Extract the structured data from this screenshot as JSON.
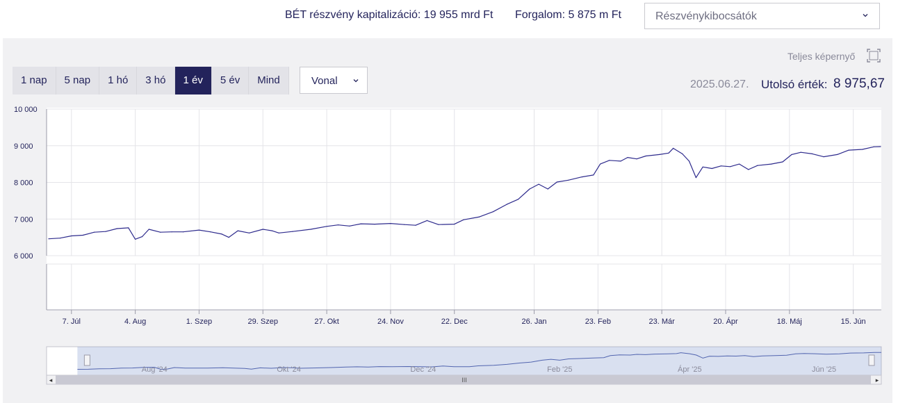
{
  "header": {
    "capitalization": "BÉT részvény kapitalizáció: 19 955 mrd Ft",
    "turnover": "Forgalom: 5 875 m Ft",
    "issuer_select": "Részvénykibocsátók"
  },
  "toolbar": {
    "fullscreen": "Teljes képernyő",
    "ranges": [
      "1 nap",
      "5 nap",
      "1 hó",
      "3 hó",
      "1 év",
      "5 év",
      "Mind"
    ],
    "active_range": "1 év",
    "chart_type": "Vonal",
    "date": "2025.06.27.",
    "last_label": "Utolsó érték:",
    "last_value": "8 975,67"
  },
  "colors": {
    "line": "#2d2a8c",
    "navy": "#23235b",
    "panel": "#f1f1f3"
  },
  "chart_data": {
    "type": "line",
    "title": "",
    "xlabel": "",
    "ylabel": "",
    "ylim": [
      6000,
      10000
    ],
    "yticks": [
      6000,
      7000,
      8000,
      9000,
      10000
    ],
    "ytick_labels": [
      "6 000",
      "7 000",
      "8 000",
      "9 000",
      "10 000"
    ],
    "x_range": [
      "2024-06-27",
      "2025-06-27"
    ],
    "xticks": [
      {
        "date": "2024-07-07",
        "label": "7. Júl"
      },
      {
        "date": "2024-08-04",
        "label": "4. Aug"
      },
      {
        "date": "2024-09-01",
        "label": "1. Szep"
      },
      {
        "date": "2024-09-29",
        "label": "29. Szep"
      },
      {
        "date": "2024-10-27",
        "label": "27. Okt"
      },
      {
        "date": "2024-11-24",
        "label": "24. Nov"
      },
      {
        "date": "2024-12-22",
        "label": "22. Dec"
      },
      {
        "date": "2025-01-26",
        "label": "26. Jan"
      },
      {
        "date": "2025-02-23",
        "label": "23. Feb"
      },
      {
        "date": "2025-03-23",
        "label": "23. Már"
      },
      {
        "date": "2025-04-20",
        "label": "20. Ápr"
      },
      {
        "date": "2025-05-18",
        "label": "18. Máj"
      },
      {
        "date": "2025-06-15",
        "label": "15. Jún"
      }
    ],
    "series": [
      {
        "values": [
          [
            "2024-06-27",
            6460
          ],
          [
            "2024-07-02",
            6480
          ],
          [
            "2024-07-07",
            6540
          ],
          [
            "2024-07-12",
            6560
          ],
          [
            "2024-07-17",
            6640
          ],
          [
            "2024-07-22",
            6660
          ],
          [
            "2024-07-27",
            6740
          ],
          [
            "2024-08-01",
            6760
          ],
          [
            "2024-08-04",
            6450
          ],
          [
            "2024-08-07",
            6520
          ],
          [
            "2024-08-10",
            6720
          ],
          [
            "2024-08-15",
            6640
          ],
          [
            "2024-08-20",
            6650
          ],
          [
            "2024-08-25",
            6650
          ],
          [
            "2024-09-01",
            6700
          ],
          [
            "2024-09-06",
            6650
          ],
          [
            "2024-09-11",
            6590
          ],
          [
            "2024-09-14",
            6500
          ],
          [
            "2024-09-18",
            6680
          ],
          [
            "2024-09-23",
            6620
          ],
          [
            "2024-09-29",
            6720
          ],
          [
            "2024-10-03",
            6680
          ],
          [
            "2024-10-06",
            6620
          ],
          [
            "2024-10-12",
            6660
          ],
          [
            "2024-10-20",
            6720
          ],
          [
            "2024-10-27",
            6800
          ],
          [
            "2024-11-01",
            6840
          ],
          [
            "2024-11-06",
            6810
          ],
          [
            "2024-11-11",
            6870
          ],
          [
            "2024-11-17",
            6860
          ],
          [
            "2024-11-24",
            6880
          ],
          [
            "2024-11-30",
            6850
          ],
          [
            "2024-12-05",
            6830
          ],
          [
            "2024-12-10",
            6960
          ],
          [
            "2024-12-15",
            6850
          ],
          [
            "2024-12-22",
            6860
          ],
          [
            "2024-12-26",
            6980
          ],
          [
            "2025-01-02",
            7060
          ],
          [
            "2025-01-08",
            7200
          ],
          [
            "2025-01-14",
            7400
          ],
          [
            "2025-01-19",
            7540
          ],
          [
            "2025-01-24",
            7820
          ],
          [
            "2025-01-28",
            7950
          ],
          [
            "2025-02-01",
            7820
          ],
          [
            "2025-02-05",
            8010
          ],
          [
            "2025-02-10",
            8060
          ],
          [
            "2025-02-16",
            8150
          ],
          [
            "2025-02-21",
            8200
          ],
          [
            "2025-02-24",
            8500
          ],
          [
            "2025-02-28",
            8600
          ],
          [
            "2025-03-05",
            8580
          ],
          [
            "2025-03-08",
            8680
          ],
          [
            "2025-03-12",
            8640
          ],
          [
            "2025-03-16",
            8720
          ],
          [
            "2025-03-22",
            8760
          ],
          [
            "2025-03-26",
            8800
          ],
          [
            "2025-03-28",
            8930
          ],
          [
            "2025-04-01",
            8780
          ],
          [
            "2025-04-04",
            8580
          ],
          [
            "2025-04-07",
            8130
          ],
          [
            "2025-04-10",
            8420
          ],
          [
            "2025-04-14",
            8380
          ],
          [
            "2025-04-18",
            8450
          ],
          [
            "2025-04-22",
            8430
          ],
          [
            "2025-04-26",
            8500
          ],
          [
            "2025-04-30",
            8350
          ],
          [
            "2025-05-04",
            8460
          ],
          [
            "2025-05-10",
            8500
          ],
          [
            "2025-05-15",
            8560
          ],
          [
            "2025-05-19",
            8760
          ],
          [
            "2025-05-23",
            8820
          ],
          [
            "2025-05-28",
            8780
          ],
          [
            "2025-06-02",
            8700
          ],
          [
            "2025-06-08",
            8760
          ],
          [
            "2025-06-13",
            8880
          ],
          [
            "2025-06-19",
            8900
          ],
          [
            "2025-06-24",
            8970
          ],
          [
            "2025-06-27",
            8976
          ]
        ]
      }
    ],
    "navigator": {
      "labels": [
        "Aug '24",
        "Okt '24",
        "Dec '24",
        "Feb '25",
        "Ápr '25",
        "Jún '25"
      ],
      "label_dates": [
        "2024-08-01",
        "2024-10-01",
        "2024-12-01",
        "2025-02-01",
        "2025-04-01",
        "2025-06-01"
      ],
      "nav_range": [
        "2024-06-13",
        "2025-06-27"
      ],
      "grip": "III",
      "scroll_left": "◂",
      "scroll_right": "▸"
    },
    "grid": true
  }
}
